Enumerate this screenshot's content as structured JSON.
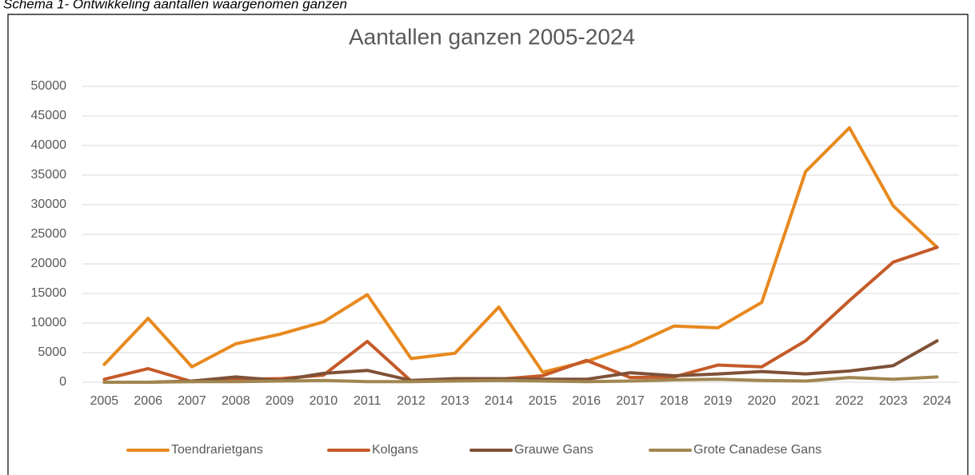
{
  "caption": "Schema 1- Ontwikkeling aantallen waargenomen ganzen",
  "chart_data": {
    "type": "line",
    "title": "Aantallen ganzen 2005-2024",
    "categories": [
      "2005",
      "2006",
      "2007",
      "2008",
      "2009",
      "2010",
      "2011",
      "2012",
      "2013",
      "2014",
      "2015",
      "2016",
      "2017",
      "2018",
      "2019",
      "2020",
      "2021",
      "2022",
      "2023",
      "2024"
    ],
    "series": [
      {
        "name": "Toendrarietgans",
        "color": "#e8891e",
        "values": [
          3000,
          10800,
          2600,
          6500,
          8100,
          10200,
          14800,
          4000,
          4900,
          12700,
          1700,
          3500,
          6100,
          9500,
          9200,
          13500,
          35600,
          43000,
          29800,
          22800
        ]
      },
      {
        "name": "Kolgans",
        "color": "#c55a28",
        "values": [
          500,
          2300,
          100,
          500,
          600,
          1200,
          6900,
          200,
          300,
          500,
          1100,
          3700,
          800,
          900,
          2900,
          2600,
          7000,
          13800,
          20300,
          22800
        ]
      },
      {
        "name": "Grauwe Gans",
        "color": "#7f5137",
        "values": [
          0,
          0,
          200,
          900,
          300,
          1500,
          2000,
          300,
          600,
          600,
          500,
          500,
          1600,
          1100,
          1400,
          1800,
          1400,
          1900,
          2800,
          7000
        ]
      },
      {
        "name": "Grote Canadese Gans",
        "color": "#a08650",
        "values": [
          0,
          0,
          100,
          100,
          200,
          300,
          100,
          100,
          200,
          300,
          200,
          100,
          200,
          400,
          500,
          300,
          200,
          800,
          500,
          900
        ]
      }
    ],
    "ylim": [
      0,
      50000
    ],
    "yticks": [
      0,
      5000,
      10000,
      15000,
      20000,
      25000,
      30000,
      35000,
      40000,
      45000,
      50000
    ],
    "grid": true,
    "legend": "bottom"
  }
}
